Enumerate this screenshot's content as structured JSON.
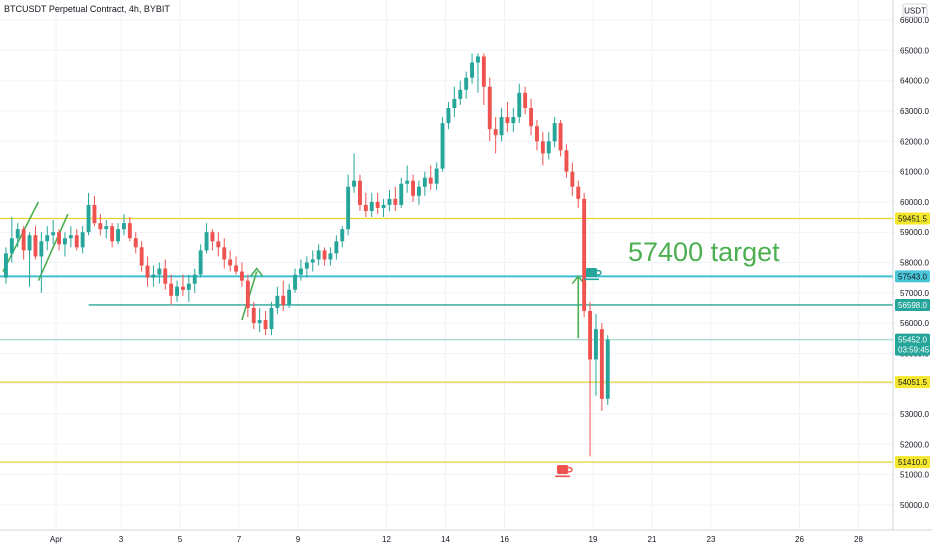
{
  "chart_data": {
    "type": "candlestick",
    "title": "BTCUSDT Perpetual Contract, 4h, BYBIT",
    "currency": "USDT",
    "ylim": [
      49500,
      66400
    ],
    "y_ticks": [
      50000,
      51000,
      52000,
      53000,
      54000,
      55000,
      56000,
      57000,
      58000,
      59000,
      60000,
      61000,
      62000,
      63000,
      64000,
      65000,
      66000
    ],
    "y_tick_labels": [
      "50000.0",
      "51000.0",
      "52000.0",
      "53000.0",
      "54000.0",
      "55000.0",
      "56000.0",
      "57000.0",
      "58000.0",
      "59000.0",
      "60000.0",
      "61000.0",
      "62000.0",
      "63000.0",
      "64000.0",
      "65000.0",
      "66000.0"
    ],
    "x_axis": [
      {
        "label": "Apr",
        "bar": 9
      },
      {
        "label": "3",
        "bar": 20
      },
      {
        "label": "5",
        "bar": 30
      },
      {
        "label": "7",
        "bar": 40
      },
      {
        "label": "9",
        "bar": 50
      },
      {
        "label": "12",
        "bar": 65
      },
      {
        "label": "14",
        "bar": 75
      },
      {
        "label": "16",
        "bar": 85
      },
      {
        "label": "19",
        "bar": 100
      },
      {
        "label": "21",
        "bar": 110
      },
      {
        "label": "23",
        "bar": 120
      },
      {
        "label": "26",
        "bar": 135
      },
      {
        "label": "28",
        "bar": 145
      }
    ],
    "candles": [
      [
        57500,
        58500,
        57300,
        58300
      ],
      [
        58300,
        59500,
        58000,
        58800
      ],
      [
        58800,
        59300,
        58500,
        59100
      ],
      [
        59100,
        59200,
        58100,
        58400
      ],
      [
        58400,
        59000,
        57200,
        58900
      ],
      [
        58900,
        59200,
        58100,
        58200
      ],
      [
        58200,
        59000,
        57000,
        58700
      ],
      [
        58700,
        59200,
        58400,
        58900
      ],
      [
        58900,
        59400,
        58600,
        59000
      ],
      [
        59000,
        59100,
        58400,
        58600
      ],
      [
        58600,
        59000,
        58200,
        58800
      ],
      [
        58800,
        59200,
        58500,
        58900
      ],
      [
        58900,
        59100,
        58400,
        58500
      ],
      [
        58500,
        59200,
        58300,
        59000
      ],
      [
        59000,
        60300,
        58900,
        59900
      ],
      [
        59900,
        60200,
        59200,
        59300
      ],
      [
        59300,
        59600,
        58900,
        59100
      ],
      [
        59100,
        59400,
        58800,
        59200
      ],
      [
        59200,
        59300,
        58500,
        58700
      ],
      [
        58700,
        59300,
        58600,
        59100
      ],
      [
        59100,
        59600,
        58900,
        59300
      ],
      [
        59300,
        59500,
        58700,
        58800
      ],
      [
        58800,
        59000,
        58300,
        58500
      ],
      [
        58500,
        58700,
        57700,
        57900
      ],
      [
        57900,
        58200,
        57200,
        57500
      ],
      [
        57500,
        57900,
        57200,
        57600
      ],
      [
        57600,
        58000,
        57300,
        57800
      ],
      [
        57800,
        58100,
        57100,
        57300
      ],
      [
        57300,
        57600,
        56600,
        56900
      ],
      [
        56900,
        57400,
        56700,
        57200
      ],
      [
        57200,
        57600,
        56900,
        57100
      ],
      [
        57100,
        57600,
        56700,
        57300
      ],
      [
        57300,
        57800,
        57000,
        57600
      ],
      [
        57600,
        58600,
        57500,
        58400
      ],
      [
        58400,
        59300,
        58300,
        59000
      ],
      [
        59000,
        59100,
        58400,
        58700
      ],
      [
        58700,
        59000,
        58200,
        58500
      ],
      [
        58500,
        58800,
        57800,
        58100
      ],
      [
        58100,
        58400,
        57700,
        57900
      ],
      [
        57900,
        58200,
        57600,
        57700
      ],
      [
        57700,
        58000,
        57200,
        57400
      ],
      [
        57400,
        57600,
        56200,
        56500
      ],
      [
        56500,
        56700,
        55800,
        56000
      ],
      [
        56000,
        56500,
        55700,
        56100
      ],
      [
        56100,
        56400,
        55600,
        55800
      ],
      [
        55800,
        56700,
        55600,
        56500
      ],
      [
        56500,
        57200,
        56300,
        56900
      ],
      [
        56900,
        57400,
        56400,
        56600
      ],
      [
        56600,
        57300,
        56500,
        57100
      ],
      [
        57100,
        57800,
        57000,
        57600
      ],
      [
        57600,
        58100,
        57400,
        57800
      ],
      [
        57800,
        58200,
        57500,
        58000
      ],
      [
        58000,
        58400,
        57700,
        58100
      ],
      [
        58100,
        58600,
        57900,
        58400
      ],
      [
        58400,
        58500,
        57900,
        58100
      ],
      [
        58100,
        58500,
        57900,
        58300
      ],
      [
        58300,
        58900,
        58100,
        58700
      ],
      [
        58700,
        59200,
        58500,
        59100
      ],
      [
        59100,
        60900,
        58900,
        60500
      ],
      [
        60500,
        61600,
        60300,
        60700
      ],
      [
        60700,
        60900,
        59700,
        59900
      ],
      [
        59900,
        60300,
        59500,
        59700
      ],
      [
        59700,
        60300,
        59500,
        60000
      ],
      [
        60000,
        60300,
        59600,
        59800
      ],
      [
        59800,
        60100,
        59500,
        59900
      ],
      [
        59900,
        60400,
        59700,
        60100
      ],
      [
        60100,
        60500,
        59700,
        59900
      ],
      [
        59900,
        60800,
        59800,
        60600
      ],
      [
        60600,
        61200,
        60300,
        60700
      ],
      [
        60700,
        60900,
        60000,
        60200
      ],
      [
        60200,
        60700,
        59900,
        60500
      ],
      [
        60500,
        61000,
        60200,
        60800
      ],
      [
        60800,
        61200,
        60400,
        60600
      ],
      [
        60600,
        61300,
        60400,
        61100
      ],
      [
        61100,
        62800,
        61000,
        62600
      ],
      [
        62600,
        63300,
        62400,
        63100
      ],
      [
        63100,
        63800,
        62800,
        63400
      ],
      [
        63400,
        64000,
        63200,
        63700
      ],
      [
        63700,
        64300,
        63400,
        64100
      ],
      [
        64100,
        64900,
        63900,
        64600
      ],
      [
        64600,
        64900,
        63600,
        64800
      ],
      [
        64800,
        64900,
        63200,
        63800
      ],
      [
        63800,
        64100,
        62000,
        62400
      ],
      [
        62400,
        62800,
        61600,
        62200
      ],
      [
        62200,
        63100,
        62000,
        62800
      ],
      [
        62800,
        63300,
        62300,
        62600
      ],
      [
        62600,
        63100,
        62300,
        62800
      ],
      [
        62800,
        63900,
        62600,
        63600
      ],
      [
        63600,
        63800,
        62900,
        63100
      ],
      [
        63100,
        63400,
        62200,
        62500
      ],
      [
        62500,
        62700,
        61700,
        62000
      ],
      [
        62000,
        62300,
        61200,
        61600
      ],
      [
        61600,
        62300,
        61400,
        62000
      ],
      [
        62000,
        62800,
        61800,
        62600
      ],
      [
        62600,
        62700,
        61500,
        61700
      ],
      [
        61700,
        61900,
        60800,
        61000
      ],
      [
        61000,
        61300,
        60200,
        60500
      ],
      [
        60500,
        60700,
        59800,
        60100
      ],
      [
        60100,
        60300,
        56200,
        56400
      ],
      [
        56400,
        56700,
        51600,
        54800
      ],
      [
        54800,
        56300,
        53600,
        55800
      ],
      [
        55800,
        56000,
        53100,
        53500
      ],
      [
        53500,
        55600,
        53300,
        55452
      ]
    ],
    "price_lines": [
      {
        "value": 59451.5,
        "label": "59451.5",
        "color": "#e6d32e",
        "bg": "#f5e72c"
      },
      {
        "value": 57543.0,
        "label": "57543.0",
        "color": "#3fbfd3",
        "bg": "#4cc6d9"
      },
      {
        "value": 56598.0,
        "label": "56598.0",
        "color": "#2aa898",
        "bg": "#26a69a"
      },
      {
        "value": 55452.0,
        "label": "55452.0",
        "countdown": "03:59:45",
        "color": "#a7dcd4",
        "bg": "#26a69a"
      },
      {
        "value": 54051.5,
        "label": "54051.5",
        "color": "#e6d32e",
        "bg": "#f5e72c"
      },
      {
        "value": 51410.0,
        "label": "51410.0",
        "color": "#e6d32e",
        "bg": "#f5e72c"
      }
    ],
    "annotation": {
      "text": "57400 target",
      "color": "#4caf50"
    },
    "colors": {
      "up": "#26a69a",
      "down": "#ef5350",
      "arrow": "#4caf50",
      "grid": "#f0f3fa"
    }
  }
}
